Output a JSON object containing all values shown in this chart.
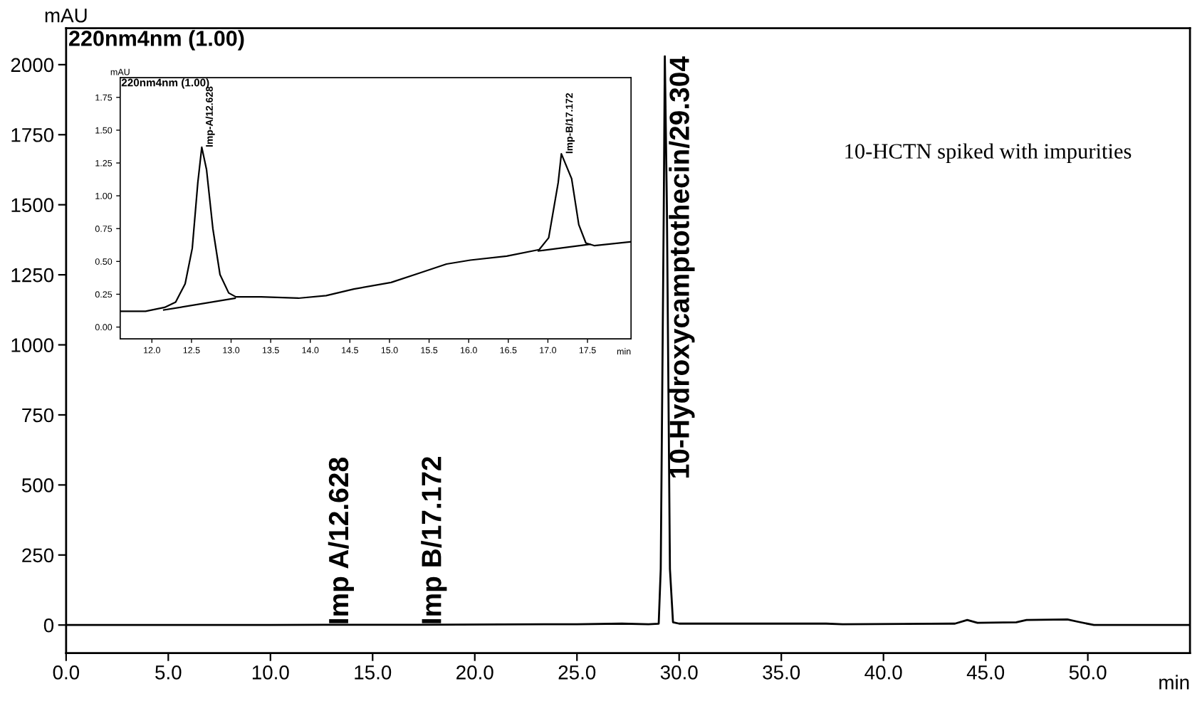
{
  "chart_data": [
    {
      "type": "line",
      "title": "220nm4nm (1.00)",
      "xlabel": "min",
      "ylabel": "mAU",
      "xlim": [
        0,
        55
      ],
      "ylim": [
        -100,
        2130
      ],
      "xticks": [
        {
          "value": 0,
          "label": "0.0"
        },
        {
          "value": 5,
          "label": "5.0"
        },
        {
          "value": 10,
          "label": "10.0"
        },
        {
          "value": 15,
          "label": "15.0"
        },
        {
          "value": 20,
          "label": "20.0"
        },
        {
          "value": 25,
          "label": "25.0"
        },
        {
          "value": 30,
          "label": "30.0"
        },
        {
          "value": 35,
          "label": "35.0"
        },
        {
          "value": 40,
          "label": "40.0"
        },
        {
          "value": 45,
          "label": "45.0"
        },
        {
          "value": 50,
          "label": "50.0"
        }
      ],
      "yticks": [
        0,
        250,
        500,
        750,
        1000,
        1250,
        1500,
        1750,
        2000
      ],
      "grid": false,
      "legend": false,
      "series": [
        {
          "color": "#000000",
          "x": [
            0,
            10,
            12.6,
            17.2,
            25,
            27.2,
            28.5,
            29.0,
            29.1,
            29.25,
            29.3,
            29.4,
            29.55,
            29.7,
            30,
            37.2,
            38,
            43.5,
            44.1,
            44.6,
            46.5,
            47,
            49,
            49.5,
            50.3,
            55
          ],
          "values": [
            0,
            0,
            1,
            1,
            3,
            5,
            3,
            5,
            200,
            1500,
            2030,
            1500,
            200,
            10,
            5,
            5,
            3,
            5,
            18,
            8,
            10,
            18,
            20,
            12,
            0,
            0
          ]
        }
      ],
      "annotations": [
        {
          "text": "Imp A/12.628",
          "x": 12.628,
          "y": 0
        },
        {
          "text": "Imp B/17.172",
          "x": 17.172,
          "y": 0
        },
        {
          "text": "10-Hydroxycamptothecin/29.304",
          "x": 29.304,
          "y": 2030
        },
        "10-HCTN spiked with impurities"
      ]
    },
    {
      "type": "line",
      "title": "220nm4nm (1.00)",
      "xlabel": "min",
      "ylabel": "mAU",
      "xlim": [
        11.6,
        18.05
      ],
      "ylim": [
        -0.09,
        1.9
      ],
      "xticks": [
        {
          "value": 12,
          "label": "12.0"
        },
        {
          "value": 12.5,
          "label": "12.5"
        },
        {
          "value": 13,
          "label": "13.0"
        },
        {
          "value": 13.5,
          "label": "13.5"
        },
        {
          "value": 14,
          "label": "14.0"
        },
        {
          "value": 14.5,
          "label": "14.5"
        },
        {
          "value": 15,
          "label": "15.0"
        },
        {
          "value": 15.5,
          "label": "15.5"
        },
        {
          "value": 16,
          "label": "16.0"
        },
        {
          "value": 16.5,
          "label": "16.5"
        },
        {
          "value": 17,
          "label": "17.0"
        },
        {
          "value": 17.5,
          "label": "17.5"
        }
      ],
      "yticks": [
        {
          "value": 0,
          "label": "0.00"
        },
        {
          "value": 0.25,
          "label": "0.25"
        },
        {
          "value": 0.5,
          "label": "0.50"
        },
        {
          "value": 0.75,
          "label": "0.75"
        },
        {
          "value": 1,
          "label": "1.00"
        },
        {
          "value": 1.25,
          "label": "1.25"
        },
        {
          "value": 1.5,
          "label": "1.50"
        },
        {
          "value": 1.75,
          "label": "1.75"
        }
      ],
      "grid": false,
      "legend": false,
      "series": [
        {
          "color": "#000000",
          "x": [
            11.6,
            11.92,
            12.16,
            12.3,
            12.42,
            12.51,
            12.58,
            12.63,
            12.69,
            12.77,
            12.86,
            12.97,
            13.06,
            13.38,
            13.85,
            14.2,
            14.55,
            15.02,
            15.37,
            15.72,
            16.02,
            16.48,
            16.89,
            17.01,
            17.13,
            17.17,
            17.3,
            17.39,
            17.48,
            17.59,
            18.05
          ],
          "values": [
            0.12,
            0.12,
            0.15,
            0.19,
            0.33,
            0.6,
            1.1,
            1.37,
            1.2,
            0.75,
            0.4,
            0.26,
            0.23,
            0.23,
            0.22,
            0.24,
            0.29,
            0.34,
            0.41,
            0.48,
            0.51,
            0.54,
            0.59,
            0.68,
            1.1,
            1.32,
            1.13,
            0.78,
            0.64,
            0.62,
            0.65
          ]
        },
        {
          "color": "#000000",
          "x": [
            12.15,
            13.05
          ],
          "values": [
            0.13,
            0.22
          ]
        },
        {
          "color": "#000000",
          "x": [
            16.88,
            17.53
          ],
          "values": [
            0.58,
            0.63
          ]
        }
      ],
      "annotations": [
        {
          "text": "Imp-A/12.628",
          "x": 12.628,
          "y": 1.37
        },
        {
          "text": "Imp-B/17.172",
          "x": 17.172,
          "y": 1.32
        }
      ]
    }
  ]
}
